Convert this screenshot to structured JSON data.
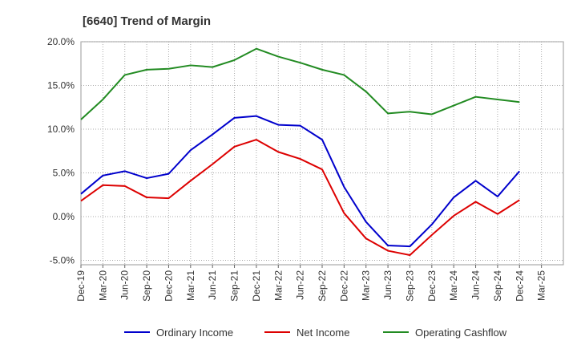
{
  "chart_data": {
    "type": "line",
    "title": "[6640]  Trend of Margin",
    "xlabel": "",
    "ylabel": "",
    "ylim": [
      -5.5,
      20
    ],
    "y_ticks": [
      "20.0%",
      "15.0%",
      "10.0%",
      "5.0%",
      "0.0%",
      "-5.0%"
    ],
    "y_tick_values": [
      20,
      15,
      10,
      5,
      0,
      -5
    ],
    "categories": [
      "Dec-19",
      "Mar-20",
      "Jun-20",
      "Sep-20",
      "Dec-20",
      "Mar-21",
      "Jun-21",
      "Sep-21",
      "Dec-21",
      "Mar-22",
      "Jun-22",
      "Sep-22",
      "Dec-22",
      "Mar-23",
      "Jun-23",
      "Sep-23",
      "Dec-23",
      "Mar-24",
      "Jun-24",
      "Sep-24",
      "Dec-24",
      "Mar-25"
    ],
    "grid": true,
    "legend_position": "bottom",
    "series": [
      {
        "name": "Ordinary Income",
        "color": "#0000cc",
        "values": [
          2.6,
          4.7,
          5.2,
          4.4,
          4.9,
          7.6,
          9.4,
          11.3,
          11.5,
          10.5,
          10.4,
          8.8,
          3.4,
          -0.6,
          -3.3,
          -3.4,
          -0.9,
          2.2,
          4.1,
          2.3,
          5.2,
          null
        ]
      },
      {
        "name": "Net Income",
        "color": "#dd0000",
        "values": [
          1.8,
          3.6,
          3.5,
          2.2,
          2.1,
          4.1,
          6.0,
          8.0,
          8.8,
          7.4,
          6.6,
          5.4,
          0.4,
          -2.5,
          -3.9,
          -4.4,
          -2.1,
          0.1,
          1.7,
          0.3,
          1.9,
          null
        ]
      },
      {
        "name": "Operating Cashflow",
        "color": "#228b22",
        "values": [
          11.1,
          13.4,
          16.2,
          16.8,
          16.9,
          17.3,
          17.1,
          17.9,
          19.2,
          18.3,
          17.6,
          16.8,
          16.2,
          14.3,
          11.8,
          12.0,
          11.7,
          12.7,
          13.7,
          13.4,
          13.1,
          null
        ]
      }
    ]
  }
}
